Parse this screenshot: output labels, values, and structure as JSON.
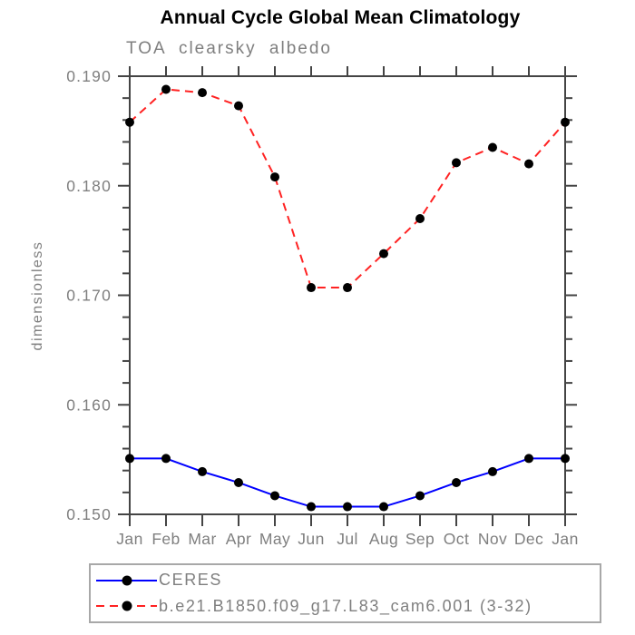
{
  "chart_data": {
    "type": "line",
    "title": "Annual Cycle Global Mean Climatology",
    "subtitle": "TOA clearsky albedo",
    "ylabel": "dimensionless",
    "x_categories": [
      "Jan",
      "Feb",
      "Mar",
      "Apr",
      "May",
      "Jun",
      "Jul",
      "Aug",
      "Sep",
      "Oct",
      "Nov",
      "Dec",
      "Jan"
    ],
    "ylim": [
      0.15,
      0.19
    ],
    "ytick_values": [
      0.15,
      0.16,
      0.17,
      0.18,
      0.19
    ],
    "ytick_labels": [
      "0.150",
      "0.160",
      "0.170",
      "0.180",
      "0.190"
    ],
    "ytick_minor_step": 0.002,
    "grid": false,
    "legend_position": "bottom-left",
    "series": [
      {
        "name": "CERES",
        "color": "#0000ff",
        "line_style": "solid",
        "marker": "circle",
        "marker_color": "#000000",
        "values": [
          0.1551,
          0.1551,
          0.1539,
          0.1529,
          0.1517,
          0.1507,
          0.1507,
          0.1507,
          0.1517,
          0.1529,
          0.1539,
          0.1551,
          0.1551
        ]
      },
      {
        "name": "b.e21.B1850.f09_g17.L83_cam6.001 (3-32)",
        "color": "#ff2222",
        "line_style": "dashed",
        "marker": "circle",
        "marker_color": "#000000",
        "values": [
          0.1858,
          0.1888,
          0.1885,
          0.1873,
          0.1808,
          0.1707,
          0.1707,
          0.1738,
          0.177,
          0.1821,
          0.1835,
          0.182,
          0.1858
        ]
      }
    ]
  },
  "colors": {
    "title_text": "#000000",
    "label_text": "#7f7f7f",
    "axis": "#444444",
    "legend_border": "#a8a8a8",
    "page_background": "#ffffff"
  }
}
